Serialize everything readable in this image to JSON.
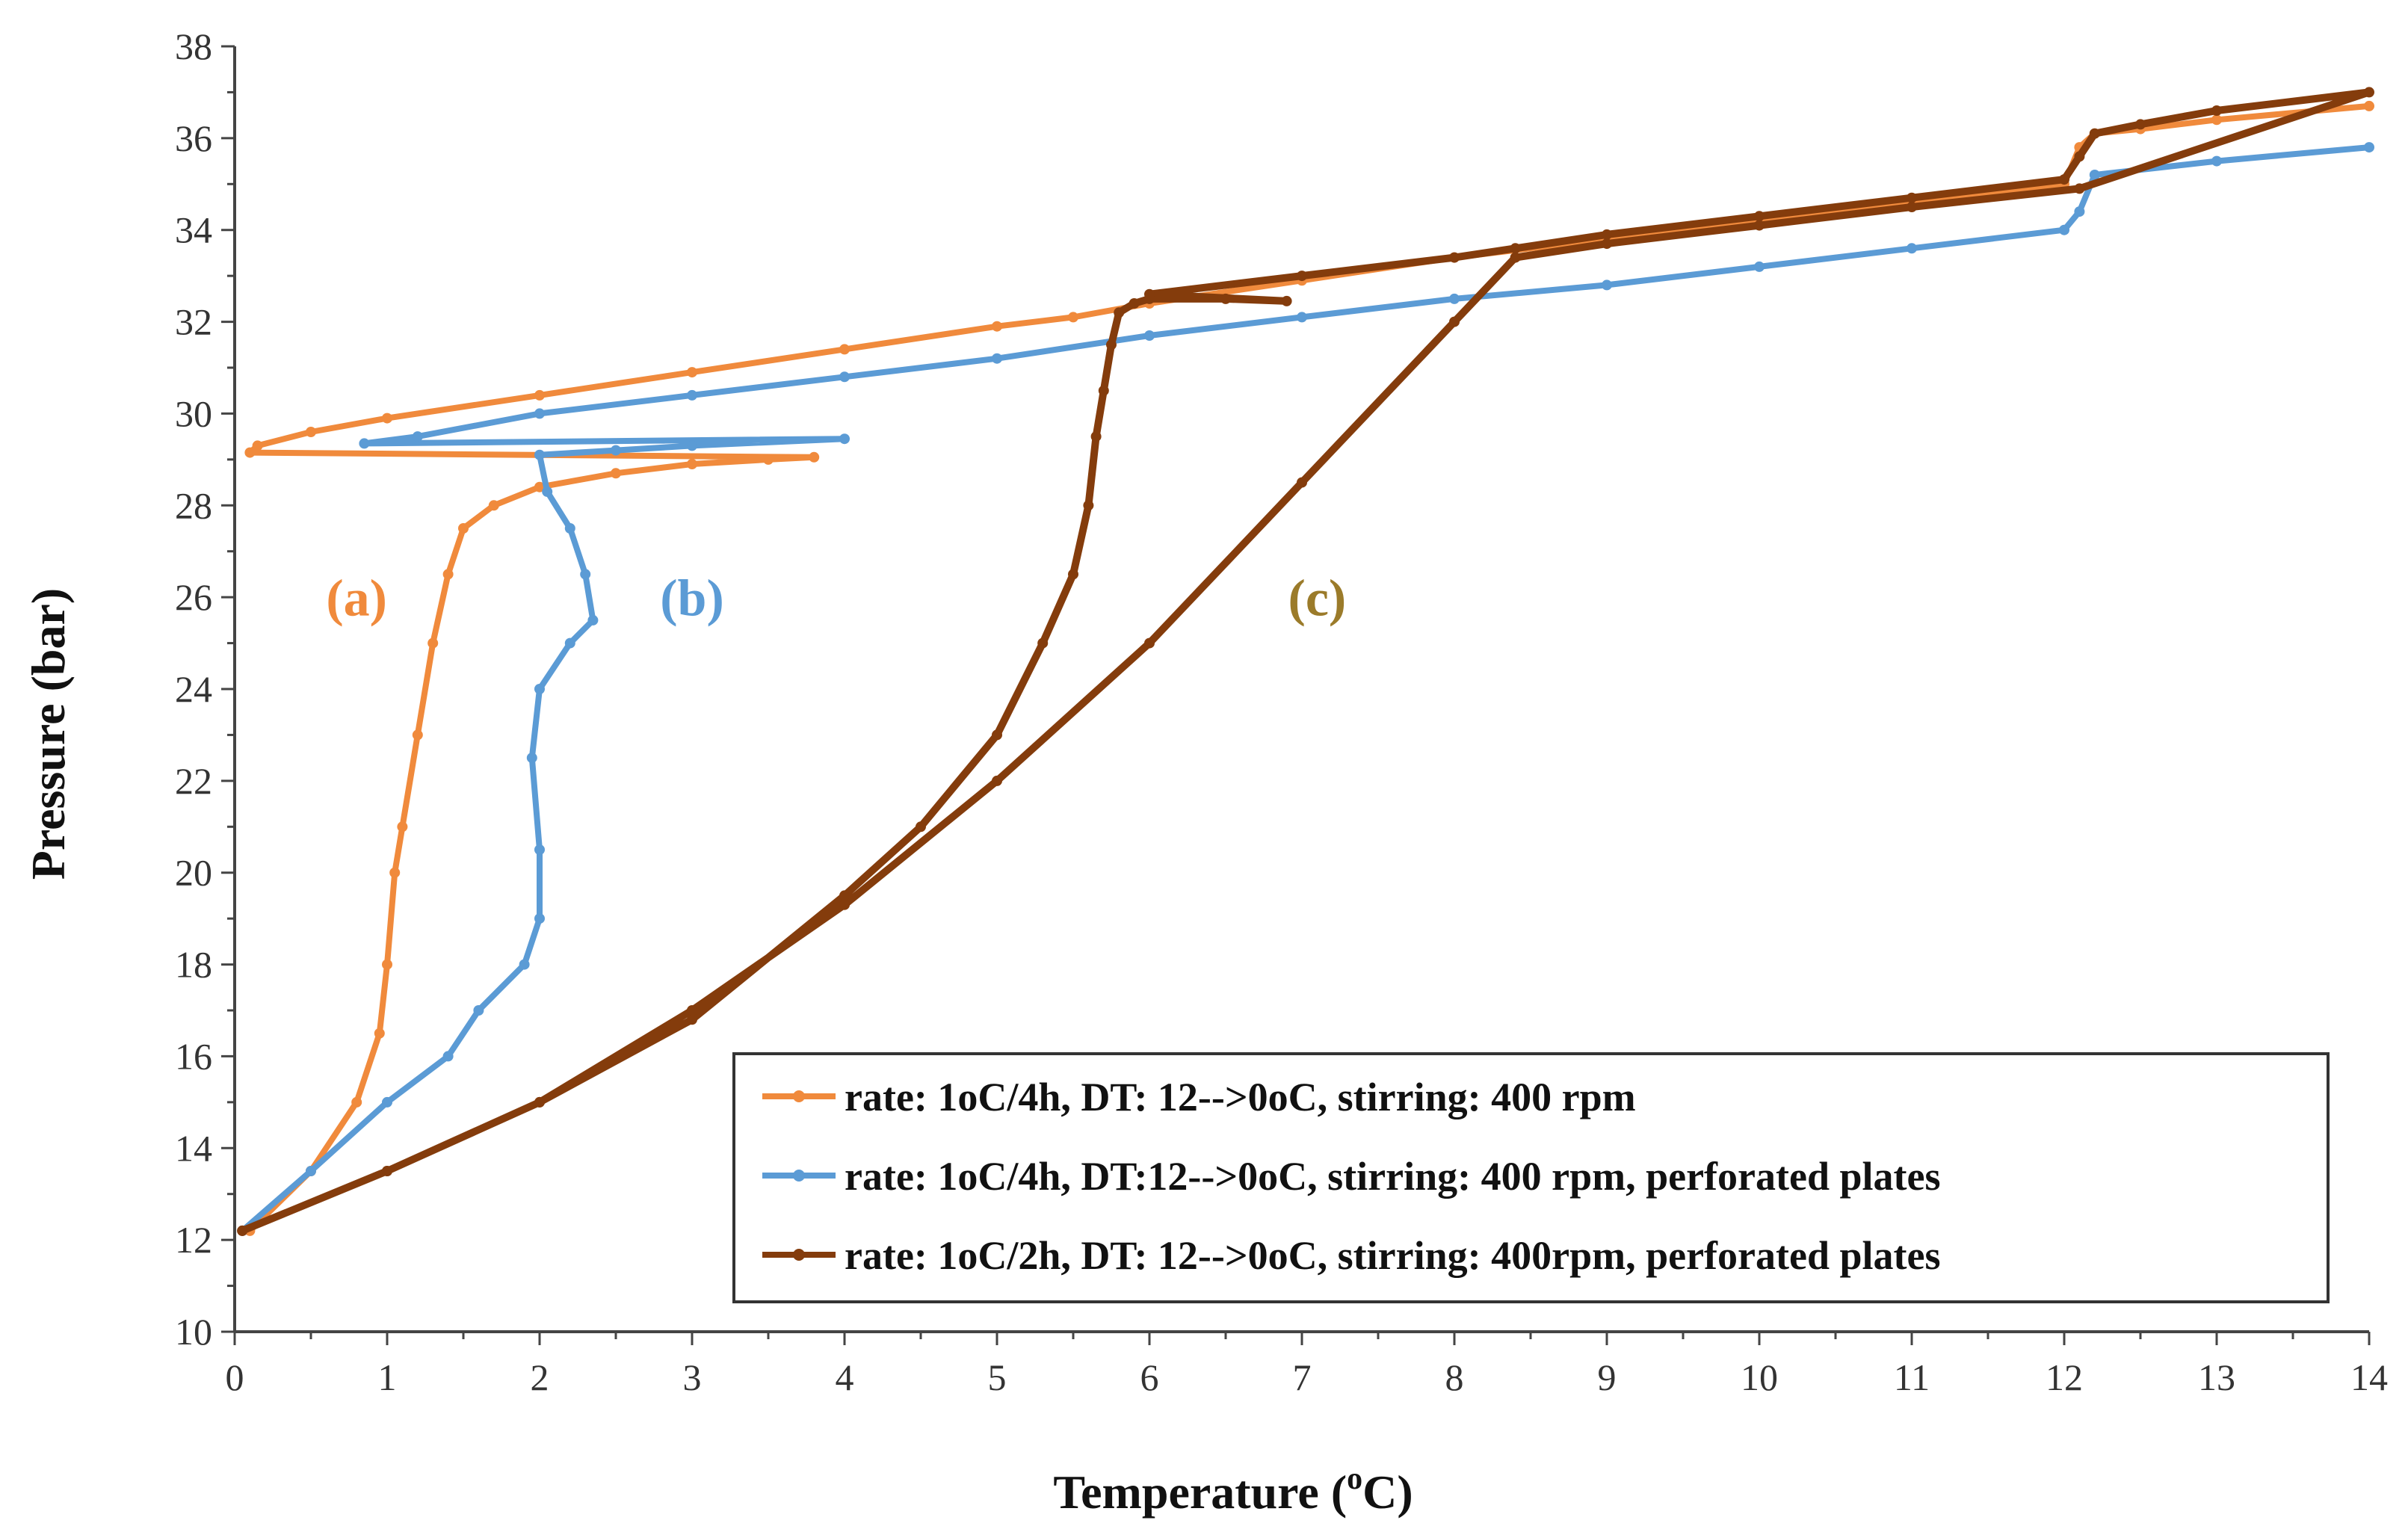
{
  "chart_data": {
    "type": "line",
    "title": "",
    "xlabel": "Temperature (",
    "xlabel_sup": "o",
    "xlabel_tail": "C)",
    "ylabel": "Pressure (bar)",
    "xlim": [
      0,
      14
    ],
    "ylim": [
      10,
      38
    ],
    "x_ticks": [
      "0",
      "1",
      "2",
      "3",
      "4",
      "5",
      "6",
      "7",
      "8",
      "9",
      "10",
      "11",
      "12",
      "13",
      "14"
    ],
    "y_ticks": [
      "10",
      "12",
      "14",
      "16",
      "18",
      "20",
      "22",
      "24",
      "26",
      "28",
      "30",
      "32",
      "34",
      "36",
      "38"
    ],
    "grid": false,
    "legend_position": "bottom-right",
    "series": [
      {
        "name": "rate: 1oC/4h, DT: 12-->0oC, stirring: 400 rpm",
        "color": "#f08a3c",
        "x": [
          0.1,
          0.5,
          0.8,
          0.95,
          1.0,
          1.05,
          1.1,
          1.2,
          1.3,
          1.4,
          1.5,
          1.7,
          2.0,
          2.5,
          3.0,
          3.5,
          3.8,
          0.1,
          0.15,
          0.5,
          1.0,
          2.0,
          3.0,
          4.0,
          5.0,
          5.5,
          6.0,
          7.0,
          8.0,
          9.0,
          10.0,
          11.0,
          12.0,
          12.1,
          12.2,
          12.5,
          13.0,
          14.0
        ],
        "y": [
          12.2,
          13.5,
          15.0,
          16.5,
          18.0,
          20.0,
          21.0,
          23.0,
          25.0,
          26.5,
          27.5,
          28.0,
          28.4,
          28.7,
          28.9,
          29.0,
          29.05,
          29.15,
          29.3,
          29.6,
          29.9,
          30.4,
          30.9,
          31.4,
          31.9,
          32.1,
          32.4,
          32.9,
          33.4,
          33.8,
          34.2,
          34.6,
          35.0,
          35.8,
          36.1,
          36.2,
          36.4,
          36.7
        ]
      },
      {
        "name": "rate: 1oC/4h, DT:12-->0oC, stirring: 400 rpm, perforated plates",
        "color": "#5b9bd5",
        "x": [
          0.05,
          0.5,
          1.0,
          1.4,
          1.6,
          1.9,
          2.0,
          2.0,
          1.95,
          2.0,
          2.2,
          2.35,
          2.3,
          2.2,
          2.05,
          2.0,
          2.5,
          3.0,
          4.0,
          0.85,
          1.2,
          2.0,
          3.0,
          4.0,
          5.0,
          6.0,
          7.0,
          8.0,
          9.0,
          10.0,
          11.0,
          12.0,
          12.1,
          12.2,
          13.0,
          14.0
        ],
        "y": [
          12.2,
          13.5,
          15.0,
          16.0,
          17.0,
          18.0,
          19.0,
          20.5,
          22.5,
          24.0,
          25.0,
          25.5,
          26.5,
          27.5,
          28.3,
          29.1,
          29.2,
          29.3,
          29.45,
          29.35,
          29.5,
          30.0,
          30.4,
          30.8,
          31.2,
          31.7,
          32.1,
          32.5,
          32.8,
          33.2,
          33.6,
          34.0,
          34.4,
          35.2,
          35.5,
          35.8
        ]
      },
      {
        "name": "rate: 1oC/2h, DT: 12-->0oC, stirring: 400rpm, perforated plates",
        "color": "#843c0c",
        "x": [
          0.05,
          1.0,
          2.0,
          3.0,
          4.0,
          4.5,
          5.0,
          5.3,
          5.5,
          5.6,
          5.65,
          5.7,
          5.75,
          5.8,
          5.9,
          6.0,
          6.5,
          6.9,
          6.0,
          7.0,
          8.0,
          8.4,
          9.0,
          10.0,
          11.0,
          12.0,
          12.1,
          12.2,
          12.5,
          13.0,
          14.0,
          12.1,
          11.0,
          10.0,
          9.0,
          8.4,
          8.0,
          7.0,
          6.0,
          5.0,
          4.0,
          3.0,
          2.0,
          1.0,
          0.05
        ],
        "y": [
          12.2,
          13.5,
          15.0,
          16.8,
          19.5,
          21.0,
          23.0,
          25.0,
          26.5,
          28.0,
          29.5,
          30.5,
          31.5,
          32.2,
          32.4,
          32.5,
          32.5,
          32.45,
          32.6,
          33.0,
          33.4,
          33.6,
          33.9,
          34.3,
          34.7,
          35.1,
          35.6,
          36.1,
          36.3,
          36.6,
          37.0,
          34.9,
          34.5,
          34.1,
          33.7,
          33.4,
          32.0,
          28.5,
          25.0,
          22.0,
          19.3,
          17.0,
          15.0,
          13.5,
          12.2
        ]
      }
    ],
    "annotations": [
      {
        "text": "(a)",
        "x": 0.8,
        "y": 25.6,
        "color": "#f08a3c"
      },
      {
        "text": "(b)",
        "x": 3.0,
        "y": 25.6,
        "color": "#5b9bd5"
      },
      {
        "text": "(c)",
        "x": 7.1,
        "y": 25.6,
        "color": "#9b7b2a"
      }
    ]
  }
}
